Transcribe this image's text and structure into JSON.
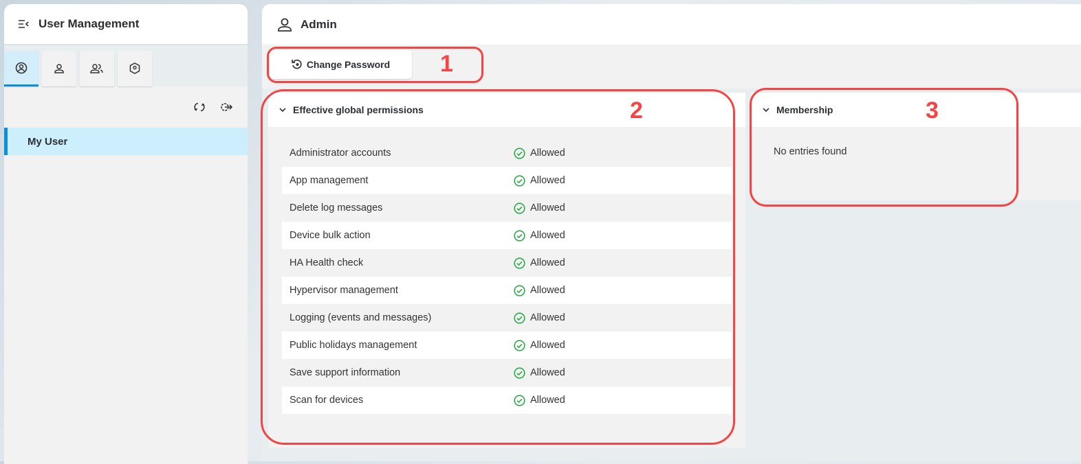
{
  "sidebar": {
    "title": "User Management",
    "tabs": [
      "my-user",
      "users",
      "groups",
      "roles"
    ],
    "items": [
      {
        "label": "My User",
        "selected": true
      }
    ]
  },
  "header": {
    "title": "Admin"
  },
  "toolbar": {
    "change_password": "Change Password"
  },
  "permissions": {
    "title": "Effective global permissions",
    "rows": [
      {
        "name": "Administrator accounts",
        "status": "Allowed"
      },
      {
        "name": "App management",
        "status": "Allowed"
      },
      {
        "name": "Delete log messages",
        "status": "Allowed"
      },
      {
        "name": "Device bulk action",
        "status": "Allowed"
      },
      {
        "name": "HA Health check",
        "status": "Allowed"
      },
      {
        "name": "Hypervisor management",
        "status": "Allowed"
      },
      {
        "name": "Logging (events and messages)",
        "status": "Allowed"
      },
      {
        "name": "Public holidays management",
        "status": "Allowed"
      },
      {
        "name": "Save support information",
        "status": "Allowed"
      },
      {
        "name": "Scan for devices",
        "status": "Allowed"
      }
    ]
  },
  "membership": {
    "title": "Membership",
    "empty": "No entries found"
  },
  "annotations": [
    "1",
    "2",
    "3"
  ],
  "colors": {
    "accent": "#0a8fd8",
    "allowed": "#2eaa4a",
    "annotation": "#f44444"
  }
}
